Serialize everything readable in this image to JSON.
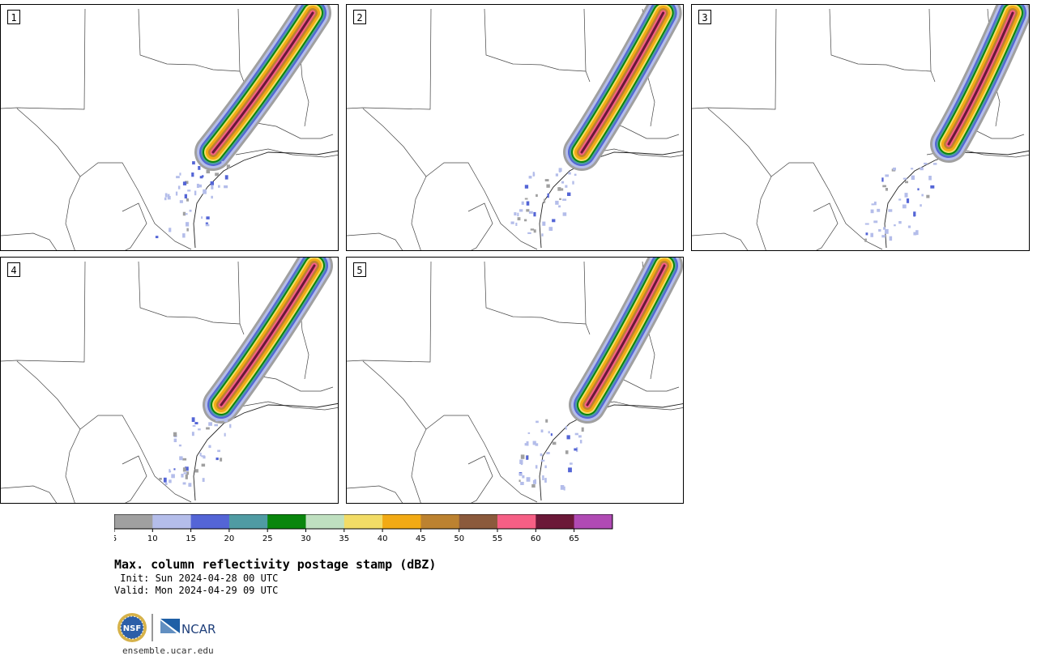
{
  "panels": [
    {
      "label": "1"
    },
    {
      "label": "2"
    },
    {
      "label": "3"
    },
    {
      "label": "4"
    },
    {
      "label": "5"
    }
  ],
  "colorbar": {
    "ticks": [
      "5",
      "10",
      "15",
      "20",
      "25",
      "30",
      "35",
      "40",
      "45",
      "50",
      "55",
      "60",
      "65"
    ],
    "colors": [
      "#a0a0a0",
      "#b4bdea",
      "#5465d6",
      "#4f9ba3",
      "#09860d",
      "#bfe0c0",
      "#f2dc66",
      "#f2aa14",
      "#bc8230",
      "#8b5a3c",
      "#f65f85",
      "#6b1838",
      "#b04ab4"
    ]
  },
  "title": "Max. column reflectivity postage stamp (dBZ)",
  "init_line": " Init: Sun 2024-04-28 00 UTC",
  "valid_line": "Valid: Mon 2024-04-29 09 UTC",
  "logos": {
    "nsf_text": "NSF",
    "ncar_text": "NCAR"
  },
  "url": "ensemble.ucar.edu"
}
